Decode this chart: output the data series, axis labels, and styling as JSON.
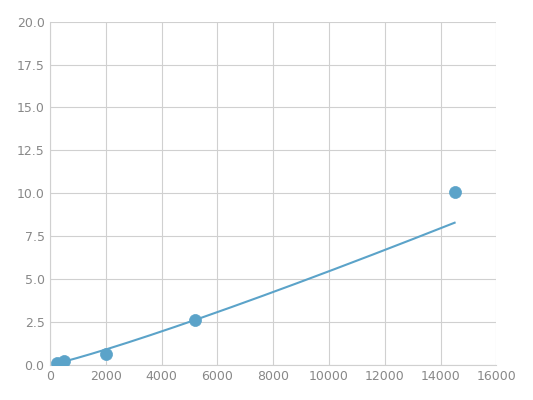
{
  "x": [
    250,
    500,
    2000,
    5200,
    14500
  ],
  "y": [
    0.1,
    0.2,
    0.6,
    2.6,
    10.1
  ],
  "line_color": "#5ba3c9",
  "marker_color": "#5ba3c9",
  "marker_size": 5,
  "xlim": [
    0,
    16000
  ],
  "ylim": [
    0,
    20.0
  ],
  "xticks": [
    0,
    2000,
    4000,
    6000,
    8000,
    10000,
    12000,
    14000,
    16000
  ],
  "yticks": [
    0.0,
    2.5,
    5.0,
    7.5,
    10.0,
    12.5,
    15.0,
    17.5,
    20.0
  ],
  "grid_color": "#d0d0d0",
  "background_color": "#ffffff",
  "tick_label_color": "#888888",
  "tick_label_fontsize": 9
}
